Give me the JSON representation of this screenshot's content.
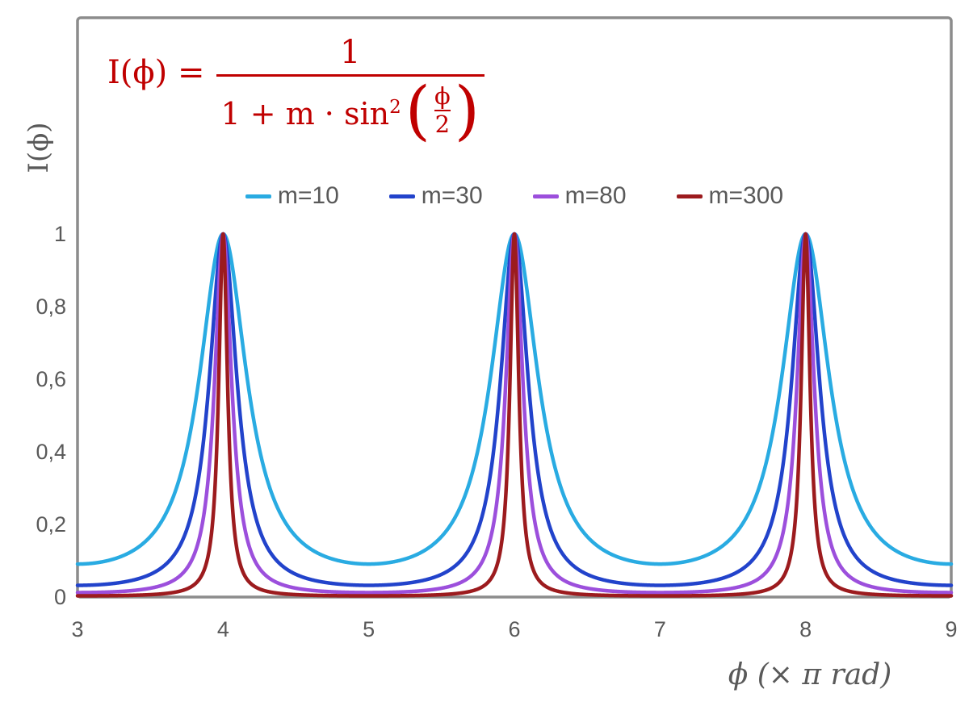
{
  "formula": {
    "lhs": "I(ϕ) =",
    "numerator": "1",
    "den_prefix": "1 + m · sin",
    "den_sup": "2",
    "paren_left": "(",
    "paren_right": ")",
    "inner_numerator": "ϕ",
    "inner_denominator": "2",
    "color": "#C00000"
  },
  "chart_data": {
    "type": "line",
    "title": "",
    "function": "I(phi) = 1 / (1 + m * sin^2(phi/2)), phi expressed in units of pi rad",
    "xlabel": "ϕ  (× π rad)",
    "ylabel": "I(ϕ)",
    "x_range": [
      3,
      9
    ],
    "y_range": [
      0,
      1
    ],
    "x_tick_values": [
      3,
      4,
      5,
      6,
      7,
      8,
      9
    ],
    "x_tick_labels": [
      "3",
      "4",
      "5",
      "6",
      "7",
      "8",
      "9"
    ],
    "y_tick_values": [
      0,
      0.2,
      0.4,
      0.6,
      0.8,
      1
    ],
    "y_tick_labels": [
      "0",
      "0,2",
      "0,4",
      "0,6",
      "0,8",
      "1"
    ],
    "grid": false,
    "legend_position": "top-center",
    "peaks_at_x": [
      4,
      6,
      8
    ],
    "peak_value": 1,
    "series": [
      {
        "name": "m=10",
        "m": 10,
        "color": "#29ABE2",
        "minimum_value": 0.0909
      },
      {
        "name": "m=30",
        "m": 30,
        "color": "#2243CB",
        "minimum_value": 0.0323
      },
      {
        "name": "m=80",
        "m": 80,
        "color": "#9C4FDC",
        "minimum_value": 0.0123
      },
      {
        "name": "m=300",
        "m": 300,
        "color": "#9C1B1E",
        "minimum_value": 0.0033
      }
    ],
    "frame_color": "#8C8C8C",
    "text_color": "#595959"
  }
}
